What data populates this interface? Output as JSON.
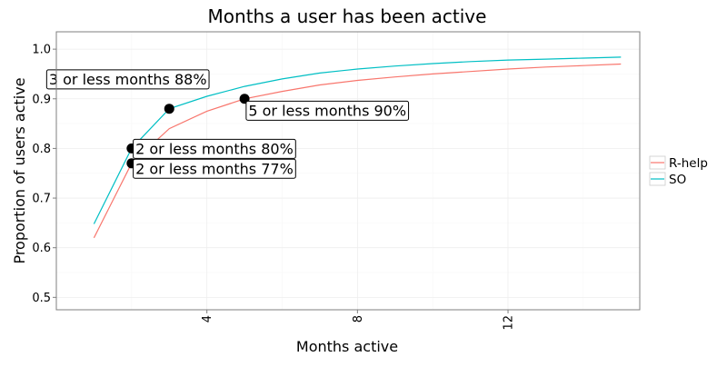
{
  "chart_data": {
    "type": "line",
    "title": "Months a user has been active",
    "xlabel": "Months active",
    "ylabel": "Proportion of users active",
    "xlim": [
      0,
      15.5
    ],
    "ylim": [
      0.475,
      1.035
    ],
    "x_ticks": [
      4,
      8,
      12
    ],
    "y_ticks": [
      0.5,
      0.6,
      0.7,
      0.8,
      0.9,
      1.0
    ],
    "y_tick_labels": [
      "0.5",
      "0.6",
      "0.7",
      "0.8",
      "0.9",
      "1.0"
    ],
    "grid": true,
    "legend_position": "right",
    "series": [
      {
        "name": "R-help",
        "color": "#F8766D",
        "x": [
          1,
          2,
          3,
          4,
          5,
          6,
          7,
          8,
          9,
          10,
          11,
          12,
          13,
          14,
          15
        ],
        "y": [
          0.62,
          0.77,
          0.84,
          0.875,
          0.9,
          0.915,
          0.928,
          0.937,
          0.944,
          0.95,
          0.955,
          0.96,
          0.964,
          0.967,
          0.97
        ]
      },
      {
        "name": "SO",
        "color": "#00BFC4",
        "x": [
          1,
          2,
          3,
          4,
          5,
          6,
          7,
          8,
          9,
          10,
          11,
          12,
          13,
          14,
          15
        ],
        "y": [
          0.648,
          0.8,
          0.88,
          0.905,
          0.925,
          0.94,
          0.952,
          0.96,
          0.966,
          0.971,
          0.975,
          0.978,
          0.98,
          0.982,
          0.984
        ]
      }
    ],
    "points": [
      {
        "x": 2,
        "y": 0.8
      },
      {
        "x": 2,
        "y": 0.77
      },
      {
        "x": 3,
        "y": 0.88
      },
      {
        "x": 5,
        "y": 0.9
      }
    ],
    "annotations": [
      {
        "text": "3 or less months 88%",
        "x": 1.9,
        "y": 0.94
      },
      {
        "text": "2  or less months 80%",
        "x": 4.2,
        "y": 0.8
      },
      {
        "text": "2  or less months 77%",
        "x": 4.2,
        "y": 0.76
      },
      {
        "text": "5 or less months 90%",
        "x": 7.2,
        "y": 0.877
      }
    ]
  }
}
